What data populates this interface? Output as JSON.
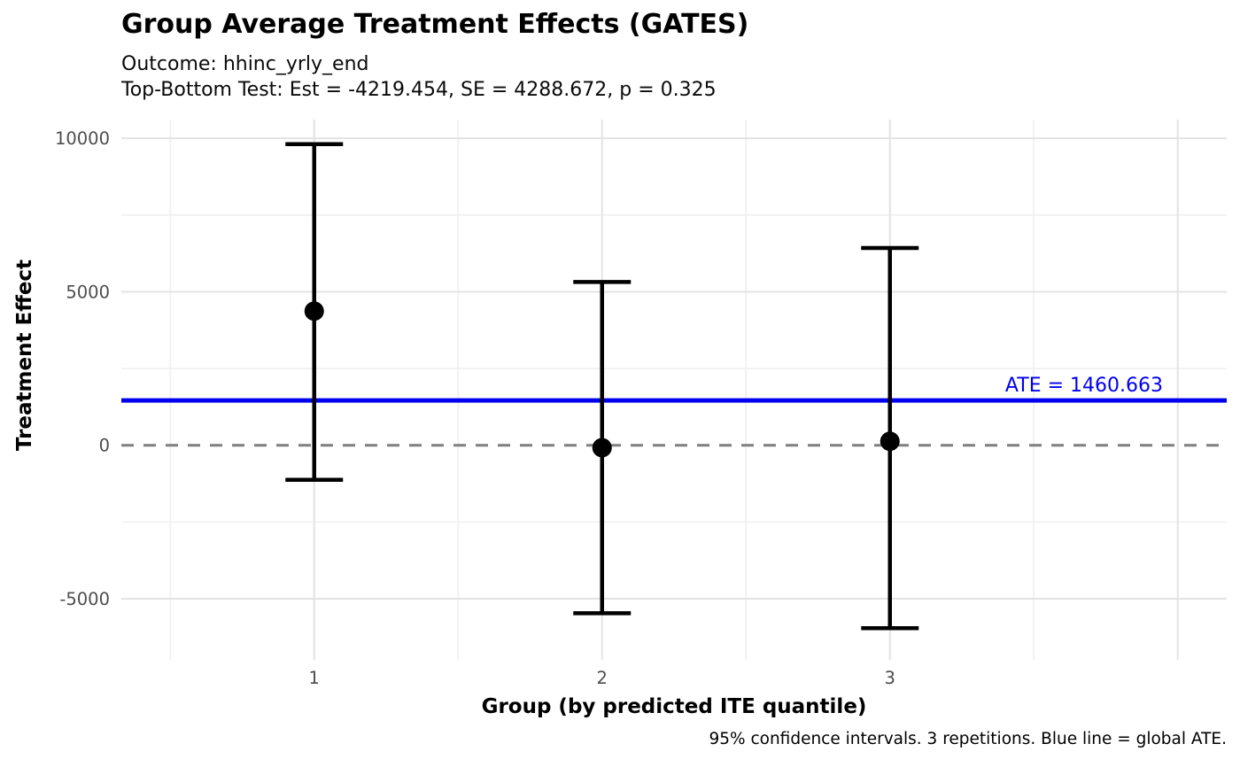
{
  "title": "Group Average Treatment Effects (GATES)",
  "subtitle_line1": "Outcome: hhinc_yrly_end",
  "subtitle_line2": "Top-Bottom Test: Est = -4219.454, SE = 4288.672, p = 0.325",
  "caption": "95% confidence intervals. 3 repetitions. Blue line = global ATE.",
  "ate_label": "ATE = 1460.663",
  "colors": {
    "ate_line": "#0000EE",
    "zero_line": "#7f7f7f",
    "errorbar": "#000000",
    "point": "#000000",
    "grid_major": "#e3e3e3",
    "grid_minor": "#efefef",
    "tick_label": "#4d4d4d",
    "text": "#000000"
  },
  "chart_data": {
    "type": "scatter",
    "subtype": "pointrange-errorbar",
    "title": "Group Average Treatment Effects (GATES)",
    "subtitle": [
      "Outcome: hhinc_yrly_end",
      "Top-Bottom Test: Est = -4219.454, SE = 4288.672, p = 0.325"
    ],
    "xlabel": "Group (by predicted ITE quantile)",
    "ylabel": "Treatment Effect",
    "caption": "95% confidence intervals. 3 repetitions. Blue line = global ATE.",
    "x": [
      1,
      2,
      3
    ],
    "x_tick_labels": [
      "1",
      "2",
      "3"
    ],
    "groups": [
      {
        "group": 1,
        "estimate": 4370,
        "ci_low": -1125,
        "ci_high": 9810
      },
      {
        "group": 2,
        "estimate": -80,
        "ci_low": -5470,
        "ci_high": 5320
      },
      {
        "group": 3,
        "estimate": 130,
        "ci_low": -5960,
        "ci_high": 6425
      }
    ],
    "ate": 1460.663,
    "zero_reference": 0,
    "top_bottom_test": {
      "est": -4219.454,
      "se": 4288.672,
      "p": 0.325
    },
    "confidence_level": "95%",
    "repetitions": 3,
    "xlim": [
      0.33,
      4.17
    ],
    "ylim": [
      -6990,
      10610
    ],
    "y_ticks": [
      10000,
      5000,
      0,
      -5000
    ],
    "y_tick_labels": [
      "10000",
      "5000",
      "0",
      "-5000"
    ],
    "y_minor_grid": [
      7500,
      2500,
      -2500
    ],
    "x_major_grid": [
      1,
      2,
      3,
      4
    ],
    "x_minor_grid": [
      0.5,
      1.5,
      2.5,
      3.5
    ],
    "grid": true,
    "legend": false
  }
}
